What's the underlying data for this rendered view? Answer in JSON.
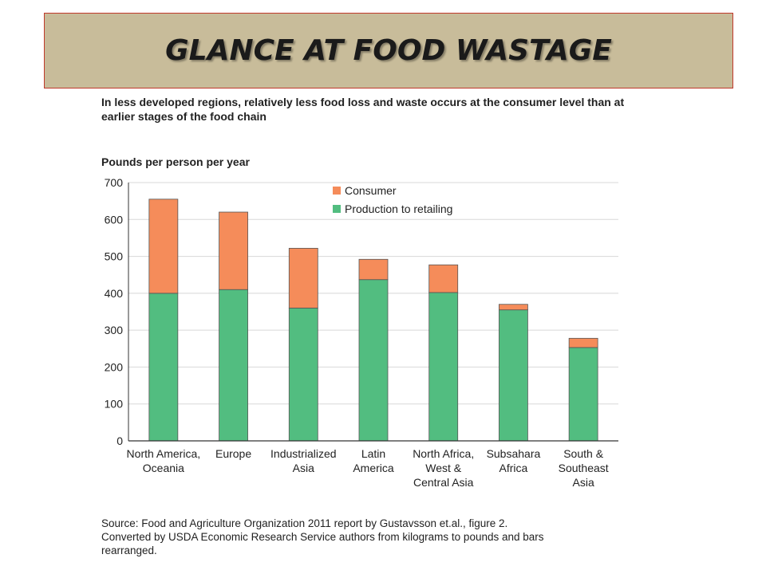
{
  "title": "GLANCE AT FOOD WASTAGE",
  "chart_data": {
    "type": "bar",
    "stacked": true,
    "title": "In less developed regions, relatively less food loss and waste occurs at the consumer level than at earlier stages of the food chain",
    "ylabel": "Pounds per person per year",
    "xlabel": "",
    "ylim": [
      0,
      700
    ],
    "yticks": [
      "0",
      "100",
      "200",
      "300",
      "400",
      "500",
      "600",
      "700"
    ],
    "ytick_values": [
      0,
      100,
      200,
      300,
      400,
      500,
      600,
      700
    ],
    "grid": true,
    "legend_position": "top-center",
    "categories": [
      [
        "North America,",
        "Oceania"
      ],
      [
        "Europe"
      ],
      [
        "Industrialized",
        "Asia"
      ],
      [
        "Latin",
        "America"
      ],
      [
        "North Africa,",
        "West &",
        "Central Asia"
      ],
      [
        "Subsahara",
        "Africa"
      ],
      [
        "South &",
        "Southeast",
        "Asia"
      ]
    ],
    "series": [
      {
        "name": "Production to retailing",
        "color": "#52bd80",
        "values": [
          400,
          410,
          360,
          437,
          402,
          355,
          253
        ]
      },
      {
        "name": "Consumer",
        "color": "#f58c5a",
        "values": [
          255,
          210,
          162,
          55,
          75,
          15,
          25
        ]
      }
    ],
    "legend": [
      "Consumer",
      "Production to retailing"
    ]
  },
  "source": {
    "line1": "Source: Food and Agriculture Organization 2011 report by Gustavsson et.al., figure 2.",
    "line2": "Converted by USDA Economic Research Service authors from kilograms to pounds and bars",
    "line3": "rearranged."
  }
}
